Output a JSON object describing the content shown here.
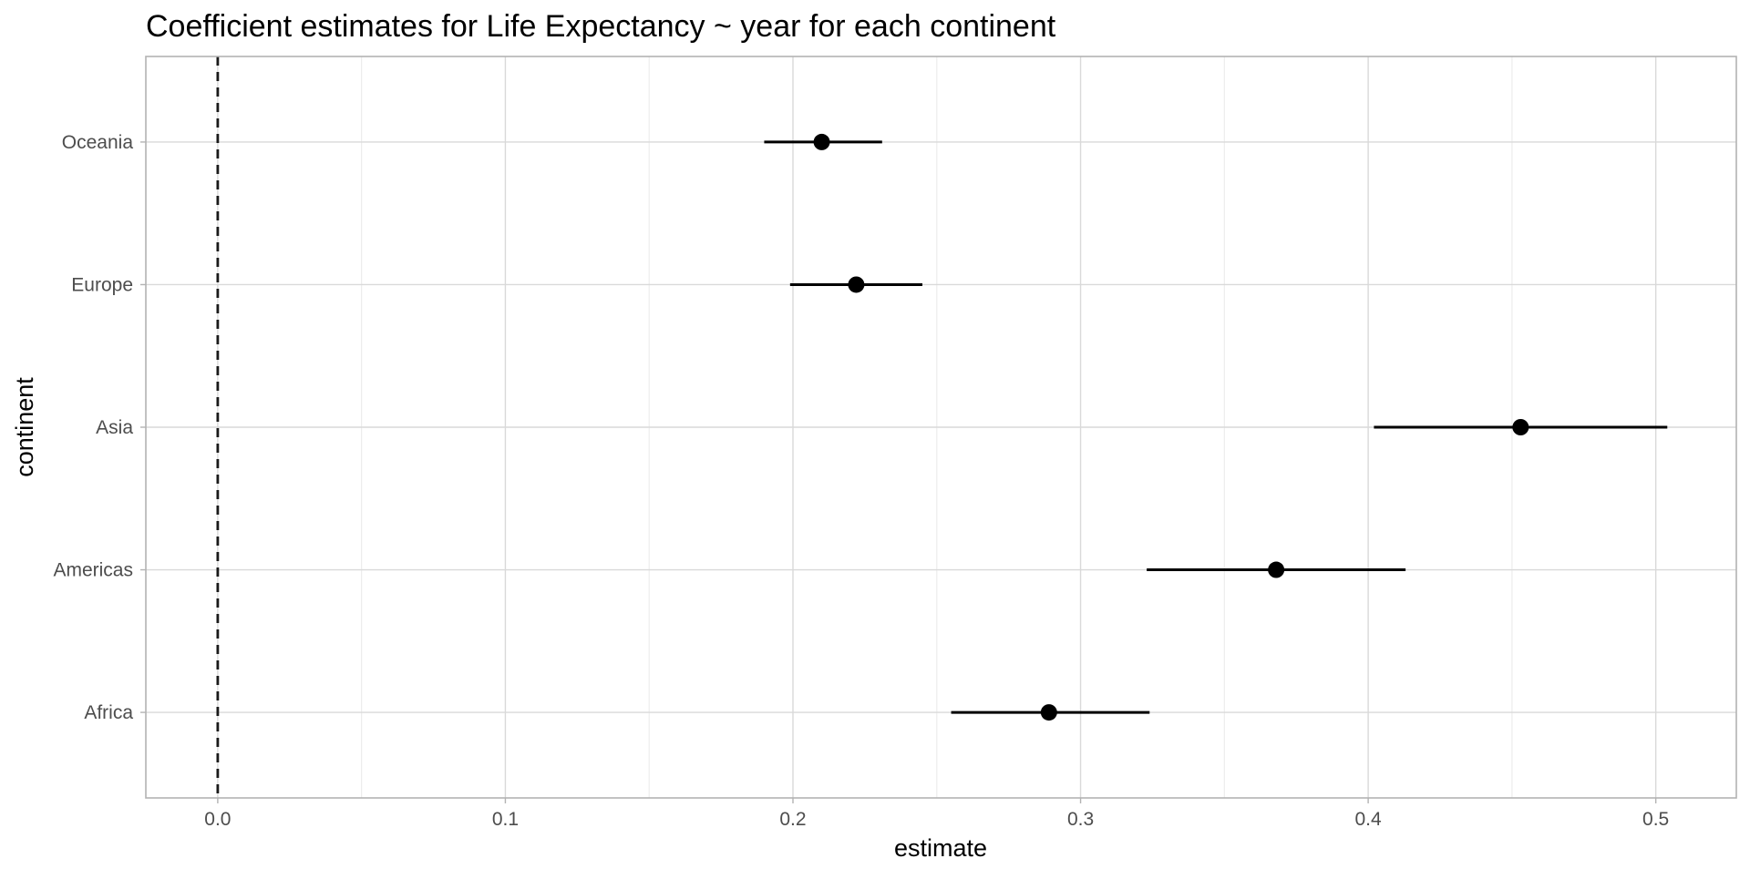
{
  "chart_data": {
    "type": "scatter",
    "title": "Coefficient estimates for Life Expectancy ~ year for each continent",
    "xlabel": "estimate",
    "ylabel": "continent",
    "xlim": [
      -0.025,
      0.528
    ],
    "x_ticks": [
      0.0,
      0.05,
      0.1,
      0.15,
      0.2,
      0.25,
      0.3,
      0.35,
      0.4,
      0.45,
      0.5
    ],
    "x_tick_labels": [
      "0.0",
      "",
      "0.1",
      "",
      "0.2",
      "",
      "0.3",
      "",
      "0.4",
      "",
      "0.5"
    ],
    "categories": [
      "Africa",
      "Americas",
      "Asia",
      "Europe",
      "Oceania"
    ],
    "series": [
      {
        "estimate": [
          0.289,
          0.368,
          0.453,
          0.222,
          0.21
        ],
        "conf_low": [
          0.255,
          0.323,
          0.402,
          0.199,
          0.19
        ],
        "conf_high": [
          0.324,
          0.413,
          0.504,
          0.245,
          0.231
        ]
      }
    ],
    "reference_line": {
      "x": 0,
      "style": "dashed"
    },
    "grid": true,
    "legend": "none"
  }
}
